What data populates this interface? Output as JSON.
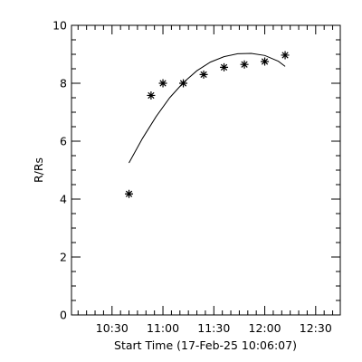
{
  "chart_data": {
    "type": "scatter",
    "xlabel": "Start Time (17-Feb-25 10:06:07)",
    "ylabel": "R/Rs",
    "xlim": [
      "10:06:07",
      "12:44:30"
    ],
    "ylim": [
      0,
      10
    ],
    "x_ticks": [
      "10:30",
      "11:00",
      "11:30",
      "12:00",
      "12:30"
    ],
    "y_ticks": [
      "0",
      "2",
      "4",
      "6",
      "8",
      "10"
    ],
    "grid": false,
    "series": [
      {
        "style": "asterisk",
        "x": [
          "10:40",
          "10:53",
          "11:00",
          "11:12",
          "11:24",
          "11:36",
          "11:48",
          "12:00",
          "12:12"
        ],
        "y": [
          4.18,
          7.58,
          8.0,
          8.0,
          8.3,
          8.55,
          8.65,
          8.75,
          8.97
        ]
      },
      {
        "style": "line",
        "x": [
          "10:40",
          "10:48",
          "10:56",
          "11:04",
          "11:12",
          "11:20",
          "11:28",
          "11:36",
          "11:44",
          "11:52",
          "12:00",
          "12:08",
          "12:12"
        ],
        "y": [
          5.25,
          6.1,
          6.85,
          7.5,
          8.02,
          8.43,
          8.73,
          8.92,
          9.02,
          9.03,
          8.96,
          8.76,
          8.58
        ]
      }
    ]
  }
}
